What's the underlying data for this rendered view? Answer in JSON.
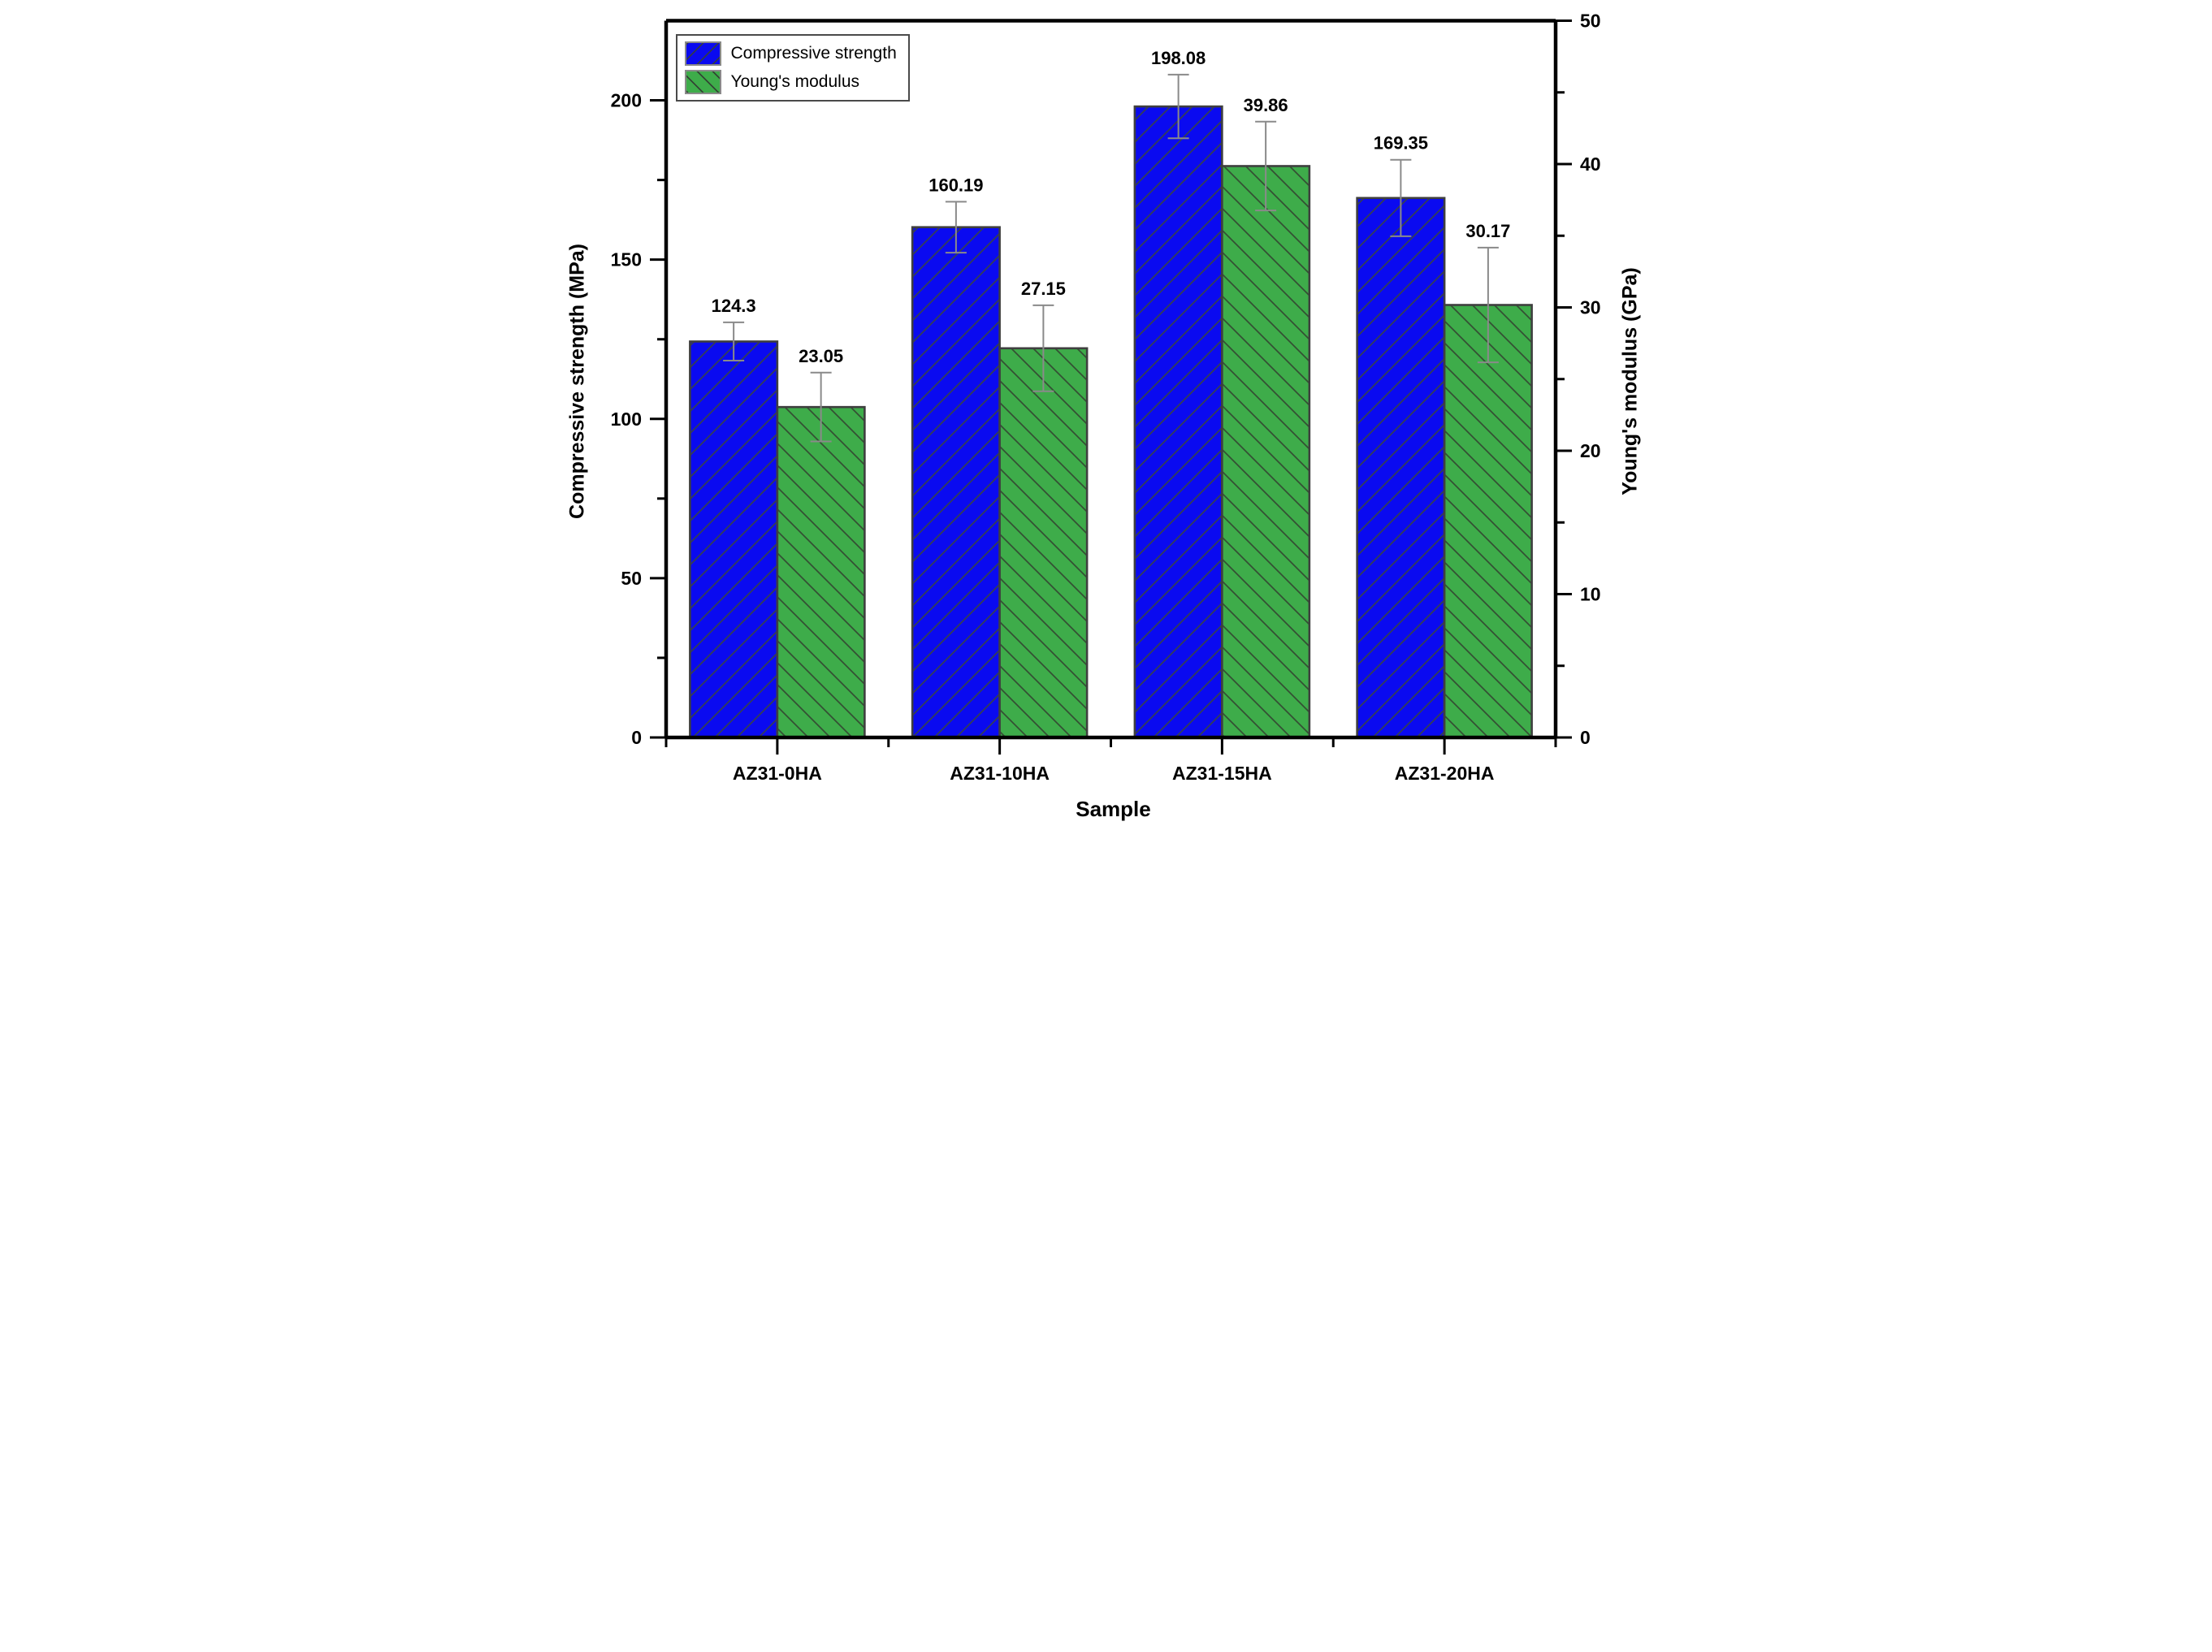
{
  "chart_data": {
    "type": "bar",
    "title": "",
    "categories": [
      "AZ31-0HA",
      "AZ31-10HA",
      "AZ31-15HA",
      "AZ31-20HA"
    ],
    "series": [
      {
        "name": "Compressive strength",
        "axis": "left",
        "color": "#0a0af0",
        "hatch": "/",
        "hatch_color": "#3c463c",
        "values": [
          124.3,
          160.19,
          198.08,
          169.35
        ],
        "value_labels": [
          "124.3",
          "160.19",
          "198.08",
          "169.35"
        ],
        "errors": [
          6,
          8,
          10,
          12
        ]
      },
      {
        "name": "Young's modulus",
        "axis": "right",
        "color": "#3EAC4A",
        "hatch": "\\",
        "hatch_color": "#32402f",
        "values": [
          23.05,
          27.15,
          39.86,
          30.17
        ],
        "value_labels": [
          "23.05",
          "27.15",
          "39.86",
          "30.17"
        ],
        "errors": [
          2.4,
          3.0,
          3.1,
          4.0
        ]
      }
    ],
    "left_axis": {
      "label": "Compressive strength (MPa)",
      "min": 0,
      "max": 225,
      "major_ticks": [
        0,
        50,
        100,
        150,
        200
      ],
      "minor_step": 25
    },
    "right_axis": {
      "label": "Young's modulus (GPa)",
      "min": 0,
      "max": 50,
      "major_ticks": [
        0,
        10,
        20,
        30,
        40,
        50
      ],
      "minor_step": 5
    },
    "x_axis": {
      "label": "Sample"
    },
    "legend": {
      "position": "top-left",
      "entries": [
        "Compressive strength",
        "Young's modulus"
      ]
    },
    "style": {
      "bar_border_color": "#3f3f3f",
      "error_bar_color": "#8a8a8a",
      "axis_color": "#000000",
      "background": "#ffffff",
      "grid": false
    }
  }
}
